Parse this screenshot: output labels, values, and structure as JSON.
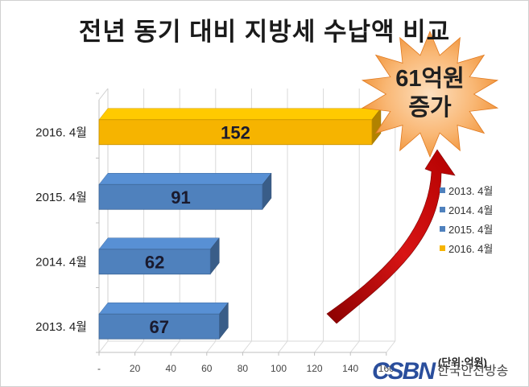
{
  "chart_data": {
    "type": "bar",
    "orientation": "horizontal",
    "title": "전년 동기 대비 지방세 수납액 비교",
    "categories": [
      "2013. 4월",
      "2014. 4월",
      "2015. 4월",
      "2016. 4월"
    ],
    "values": [
      67,
      62,
      91,
      152
    ],
    "data_labels": [
      "67",
      "62",
      "91",
      "152"
    ],
    "xlim": [
      0,
      160
    ],
    "x_ticks": [
      "-",
      "20",
      "40",
      "60",
      "80",
      "100",
      "120",
      "140",
      "160"
    ],
    "grid": true,
    "style": "3d",
    "legend": {
      "position": "right",
      "entries": [
        "2013. 4월",
        "2014. 4월",
        "2015. 4월",
        "2016. 4월"
      ],
      "colors": [
        "#4f81bd",
        "#4f81bd",
        "#4f81bd",
        "#f6b400"
      ]
    },
    "bar_colors": [
      "#4f81bd",
      "#4f81bd",
      "#4f81bd",
      "#f6b400"
    ],
    "annotation": {
      "line1": "61억원",
      "line2": "증가"
    },
    "unit_label": "(단위:억원)"
  },
  "logo": {
    "mark": "CSBN",
    "text": "한국안전방송"
  },
  "colors": {
    "blue_bar": "#4f81bd",
    "gold_bar": "#f6b400",
    "burst": "#f7a24a",
    "arrow": "#c00000"
  }
}
